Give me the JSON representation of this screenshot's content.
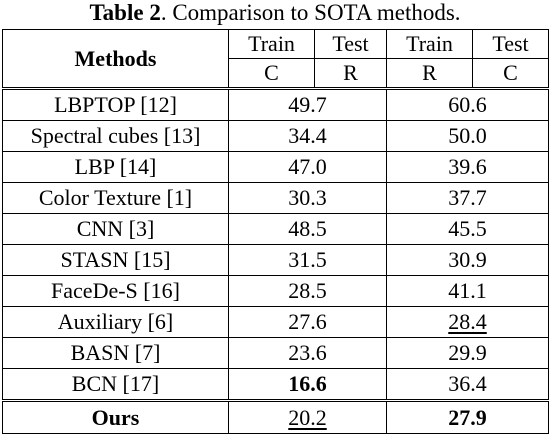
{
  "caption": {
    "number": "Table 2",
    "text": ". Comparison to SOTA methods."
  },
  "header": {
    "methods": "Methods",
    "train1": "Train",
    "test1": "Test",
    "train2": "Train",
    "test2": "Test",
    "c1": "C",
    "r1": "R",
    "r2": "R",
    "c2": "C"
  },
  "rows": [
    {
      "method": "LBPTOP [12]",
      "cr": "49.7",
      "rc": "60.6"
    },
    {
      "method": "Spectral cubes [13]",
      "cr": "34.4",
      "rc": "50.0"
    },
    {
      "method": "LBP [14]",
      "cr": "47.0",
      "rc": "39.6"
    },
    {
      "method": "Color Texture [1]",
      "cr": "30.3",
      "rc": "37.7"
    },
    {
      "method": "CNN [3]",
      "cr": "48.5",
      "rc": "45.5"
    },
    {
      "method": "STASN [15]",
      "cr": "31.5",
      "rc": "30.9"
    },
    {
      "method": "FaceDe-S [16]",
      "cr": "28.5",
      "rc": "41.1"
    },
    {
      "method": "Auxiliary [6]",
      "cr": "27.6",
      "rc": "28.4"
    },
    {
      "method": "BASN [7]",
      "cr": "23.6",
      "rc": "29.9"
    },
    {
      "method": "BCN [17]",
      "cr": "16.6",
      "rc": "36.4"
    },
    {
      "method": "Ours",
      "cr": "20.2",
      "rc": "27.9"
    }
  ],
  "emphasis": {
    "best_color": "#000000",
    "bold_cells": [
      "rows.9.cr",
      "rows.10.method",
      "rows.10.rc"
    ],
    "underlined_cells": [
      "rows.7.rc",
      "rows.10.cr"
    ]
  }
}
